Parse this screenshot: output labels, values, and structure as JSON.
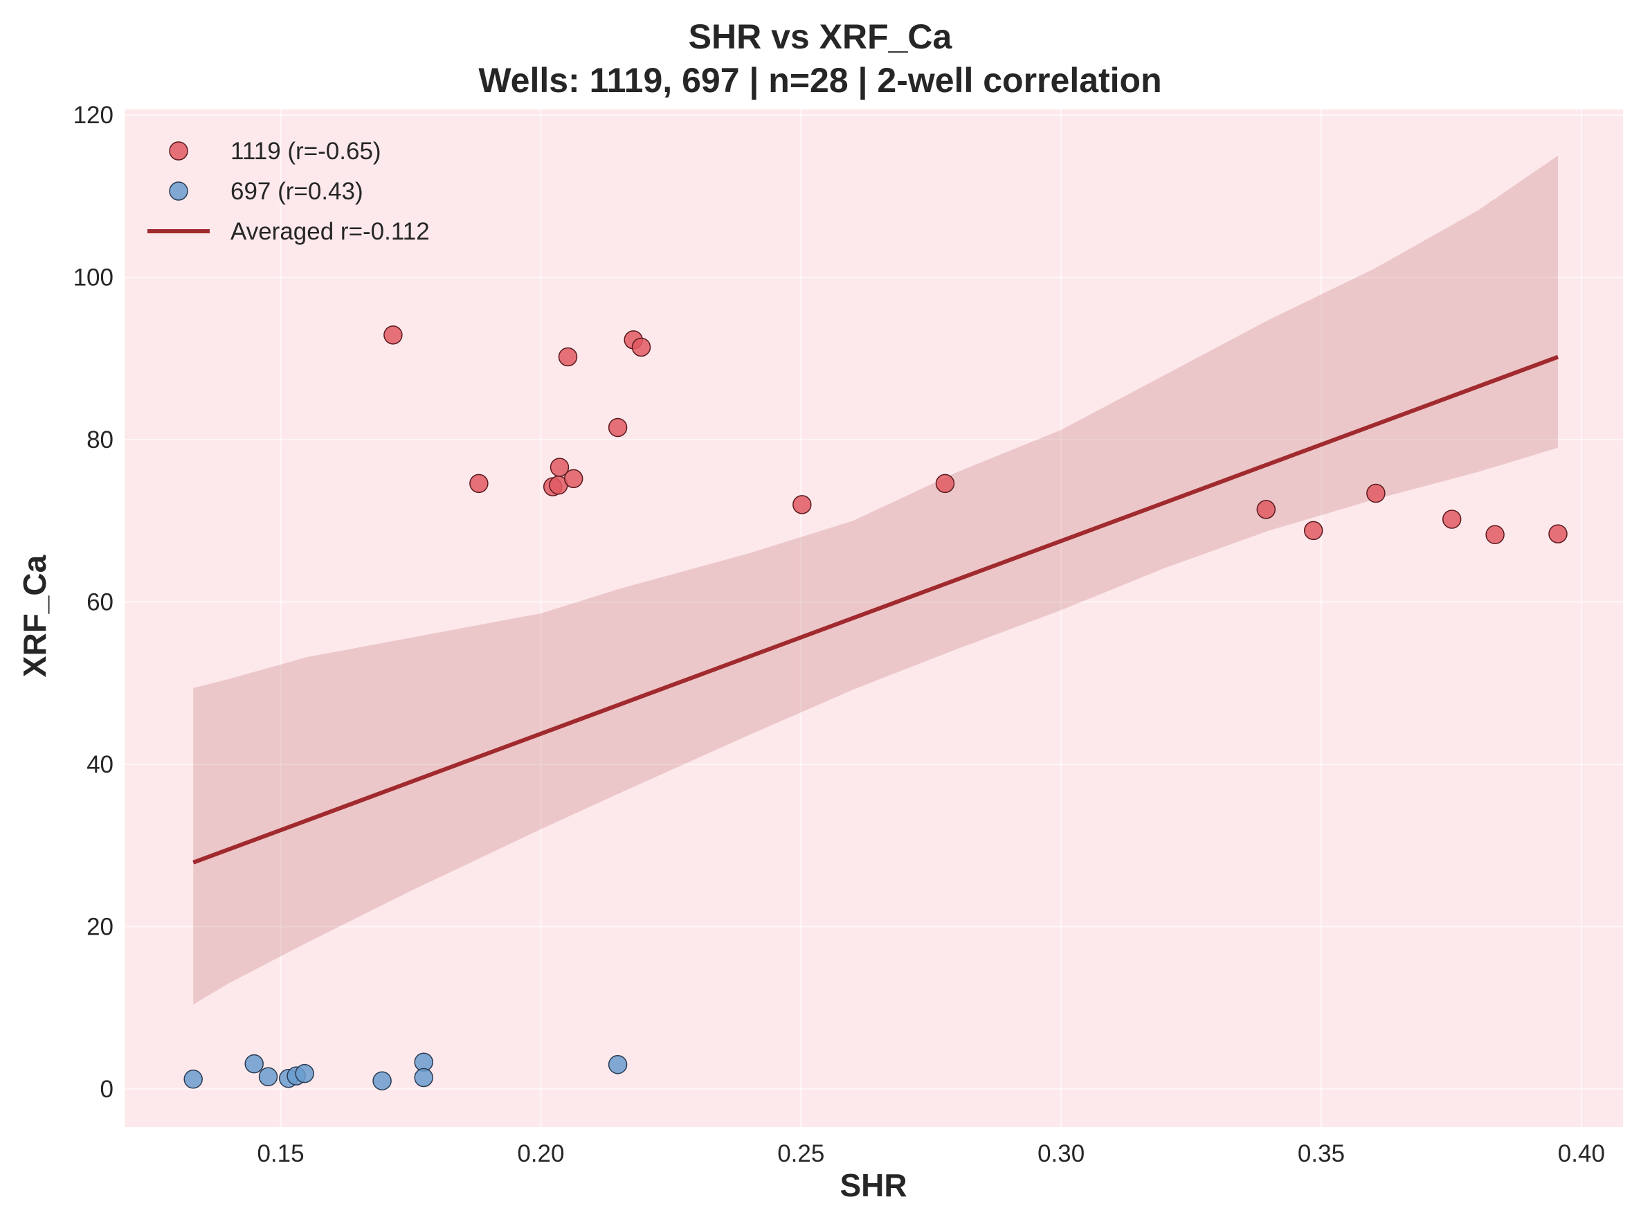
{
  "chart_data": {
    "type": "scatter",
    "title": "SHR vs XRF_Ca",
    "subtitle": "Wells: 1119, 697 | n=28 | 2-well correlation",
    "xlabel": "SHR",
    "ylabel": "XRF_Ca",
    "xlim": [
      0.12,
      0.408
    ],
    "ylim": [
      -4.7,
      120.7
    ],
    "xticks": [
      0.15,
      0.2,
      0.25,
      0.3,
      0.35,
      0.4
    ],
    "xtick_labels": [
      "0.15",
      "0.20",
      "0.25",
      "0.30",
      "0.35",
      "0.40"
    ],
    "yticks": [
      0,
      20,
      40,
      60,
      80,
      100,
      120
    ],
    "ytick_labels": [
      "0",
      "20",
      "40",
      "60",
      "80",
      "100",
      "120"
    ],
    "grid": true,
    "legend_position": "upper-left",
    "background_color": "#fde9ec",
    "series": [
      {
        "name": "1119 (r=-0.65)",
        "kind": "scatter",
        "color": "#e05a63",
        "points": [
          [
            0.1716,
            92.9
          ],
          [
            0.1881,
            74.6
          ],
          [
            0.2023,
            74.2
          ],
          [
            0.2034,
            74.4
          ],
          [
            0.2036,
            76.6
          ],
          [
            0.2052,
            90.2
          ],
          [
            0.2063,
            75.2
          ],
          [
            0.2148,
            81.5
          ],
          [
            0.2178,
            92.3
          ],
          [
            0.2193,
            91.4
          ],
          [
            0.2502,
            72.0
          ],
          [
            0.2777,
            74.6
          ],
          [
            0.3394,
            71.4
          ],
          [
            0.3485,
            68.8
          ],
          [
            0.3605,
            73.4
          ],
          [
            0.3751,
            70.2
          ],
          [
            0.3834,
            68.3
          ],
          [
            0.3955,
            68.4
          ]
        ]
      },
      {
        "name": "697 (r=0.43)",
        "kind": "scatter",
        "color": "#6a9ccf",
        "points": [
          [
            0.1332,
            1.2
          ],
          [
            0.1449,
            3.1
          ],
          [
            0.1476,
            1.5
          ],
          [
            0.1515,
            1.3
          ],
          [
            0.153,
            1.6
          ],
          [
            0.1546,
            1.9
          ],
          [
            0.1695,
            1.0
          ],
          [
            0.1775,
            3.3
          ],
          [
            0.1775,
            1.4
          ],
          [
            0.2148,
            3.0
          ]
        ]
      },
      {
        "name": "Averaged r=-0.112",
        "kind": "line",
        "color": "#a02a2e",
        "x": [
          0.1332,
          0.3955
        ],
        "y": [
          27.9,
          90.2
        ],
        "band": {
          "x": [
            0.1332,
            0.14,
            0.155,
            0.175,
            0.2,
            0.215,
            0.24,
            0.26,
            0.28,
            0.3,
            0.32,
            0.34,
            0.36,
            0.38,
            0.3955
          ],
          "upper": [
            49.4,
            50.5,
            53.2,
            55.6,
            58.6,
            61.6,
            66.0,
            70.0,
            76.0,
            81.2,
            88.0,
            94.8,
            101.0,
            108.2,
            115.0
          ],
          "lower": [
            10.4,
            13.0,
            18.0,
            24.4,
            32.0,
            36.4,
            43.6,
            49.2,
            54.2,
            59.0,
            64.2,
            68.8,
            72.6,
            76.0,
            79.0
          ]
        }
      }
    ]
  }
}
